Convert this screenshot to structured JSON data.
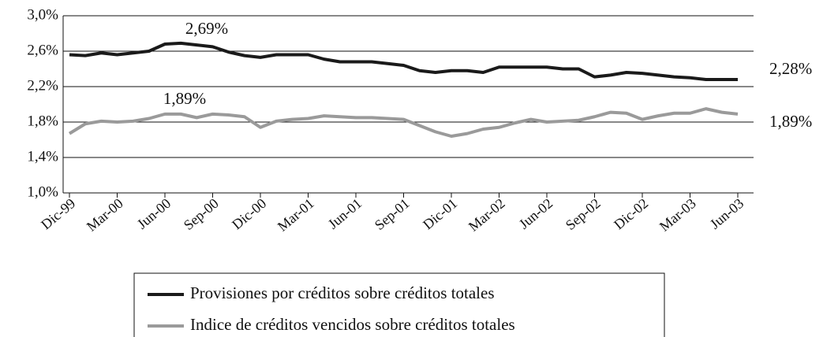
{
  "chart_data": {
    "type": "line",
    "categories": [
      "Dic-99",
      null,
      null,
      "Mar-00",
      null,
      null,
      "Jun-00",
      null,
      null,
      "Sep-00",
      null,
      null,
      "Dic-00",
      null,
      null,
      "Mar-01",
      null,
      null,
      "Jun-01",
      null,
      null,
      "Sep-01",
      null,
      null,
      "Dic-01",
      null,
      null,
      "Mar-02",
      null,
      null,
      "Jun-02",
      null,
      null,
      "Sep-02",
      null,
      null,
      "Dic-02",
      null,
      null,
      "Mar-03",
      null,
      null,
      "Jun-03"
    ],
    "series": [
      {
        "name": "Provisiones por créditos sobre créditos totales",
        "color": "#1a1a1a",
        "values": [
          2.56,
          2.55,
          2.58,
          2.56,
          2.58,
          2.6,
          2.68,
          2.69,
          2.67,
          2.65,
          2.59,
          2.55,
          2.53,
          2.56,
          2.56,
          2.56,
          2.51,
          2.48,
          2.48,
          2.48,
          2.46,
          2.44,
          2.38,
          2.36,
          2.38,
          2.38,
          2.36,
          2.42,
          2.42,
          2.42,
          2.42,
          2.4,
          2.4,
          2.31,
          2.33,
          2.36,
          2.35,
          2.33,
          2.31,
          2.3,
          2.28,
          2.28,
          2.28
        ]
      },
      {
        "name": "Indice de créditos vencidos sobre créditos totales",
        "color": "#9a9a9a",
        "values": [
          1.67,
          1.78,
          1.81,
          1.8,
          1.81,
          1.84,
          1.89,
          1.89,
          1.85,
          1.89,
          1.88,
          1.86,
          1.74,
          1.81,
          1.83,
          1.84,
          1.87,
          1.86,
          1.85,
          1.85,
          1.84,
          1.83,
          1.76,
          1.69,
          1.64,
          1.67,
          1.72,
          1.74,
          1.79,
          1.83,
          1.8,
          1.81,
          1.82,
          1.86,
          1.91,
          1.9,
          1.83,
          1.87,
          1.9,
          1.9,
          1.95,
          1.91,
          1.89
        ]
      }
    ],
    "annotations": [
      "2,69%",
      "1,89%",
      "2,28%",
      "1,89%"
    ],
    "ylim": [
      1.0,
      3.0
    ],
    "yticks": [
      {
        "value": 1.0,
        "label": "1,0%"
      },
      {
        "value": 1.4,
        "label": "1,4%"
      },
      {
        "value": 1.8,
        "label": "1,8%"
      },
      {
        "value": 2.2,
        "label": "2,2%"
      },
      {
        "value": 2.6,
        "label": "2,6%"
      },
      {
        "value": 3.0,
        "label": "3,0%"
      }
    ],
    "grid": true
  }
}
